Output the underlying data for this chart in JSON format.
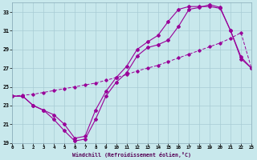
{
  "line1_x": [
    0,
    1,
    2,
    3,
    4,
    5,
    6,
    7,
    8,
    9,
    10,
    11,
    12,
    13,
    14,
    15,
    16,
    17,
    18,
    19,
    20,
    21,
    22,
    23
  ],
  "line1_y": [
    24.0,
    24.0,
    23.0,
    22.5,
    21.5,
    20.3,
    19.2,
    19.4,
    21.5,
    24.0,
    25.5,
    26.5,
    28.3,
    29.2,
    29.5,
    30.0,
    31.5,
    33.3,
    33.5,
    33.8,
    33.5,
    31.0,
    28.2,
    27.0
  ],
  "line2_x": [
    0,
    1,
    2,
    3,
    4,
    5,
    6,
    7,
    8,
    9,
    10,
    11,
    12,
    13,
    14,
    15,
    16,
    17,
    18,
    19,
    20,
    21,
    22,
    23
  ],
  "line2_y": [
    24.0,
    24.0,
    23.0,
    22.5,
    22.0,
    21.0,
    19.5,
    19.7,
    22.5,
    24.5,
    26.0,
    27.2,
    29.0,
    29.8,
    30.5,
    32.0,
    33.3,
    33.6,
    33.6,
    33.6,
    33.4,
    31.0,
    28.0,
    27.0
  ],
  "line3_x": [
    0,
    1,
    2,
    3,
    4,
    5,
    6,
    7,
    8,
    9,
    10,
    11,
    12,
    13,
    14,
    15,
    16,
    17,
    18,
    19,
    20,
    21,
    22,
    23
  ],
  "line3_y": [
    24.0,
    24.1,
    24.2,
    24.4,
    24.6,
    24.8,
    25.0,
    25.2,
    25.4,
    25.7,
    26.0,
    26.3,
    26.7,
    27.0,
    27.3,
    27.7,
    28.1,
    28.5,
    28.9,
    29.3,
    29.7,
    30.2,
    30.8,
    27.0
  ],
  "bg_color": "#c8e8ec",
  "line_color": "#990099",
  "grid_color": "#a8ccd4",
  "xlabel": "Windchill (Refroidissement éolien,°C)",
  "xlim_min": 0,
  "xlim_max": 23,
  "ylim_min": 19,
  "ylim_max": 34,
  "xticks": [
    0,
    1,
    2,
    3,
    4,
    5,
    6,
    7,
    8,
    9,
    10,
    11,
    12,
    13,
    14,
    15,
    16,
    17,
    18,
    19,
    20,
    21,
    22,
    23
  ],
  "yticks": [
    19,
    21,
    23,
    25,
    27,
    29,
    31,
    33
  ]
}
